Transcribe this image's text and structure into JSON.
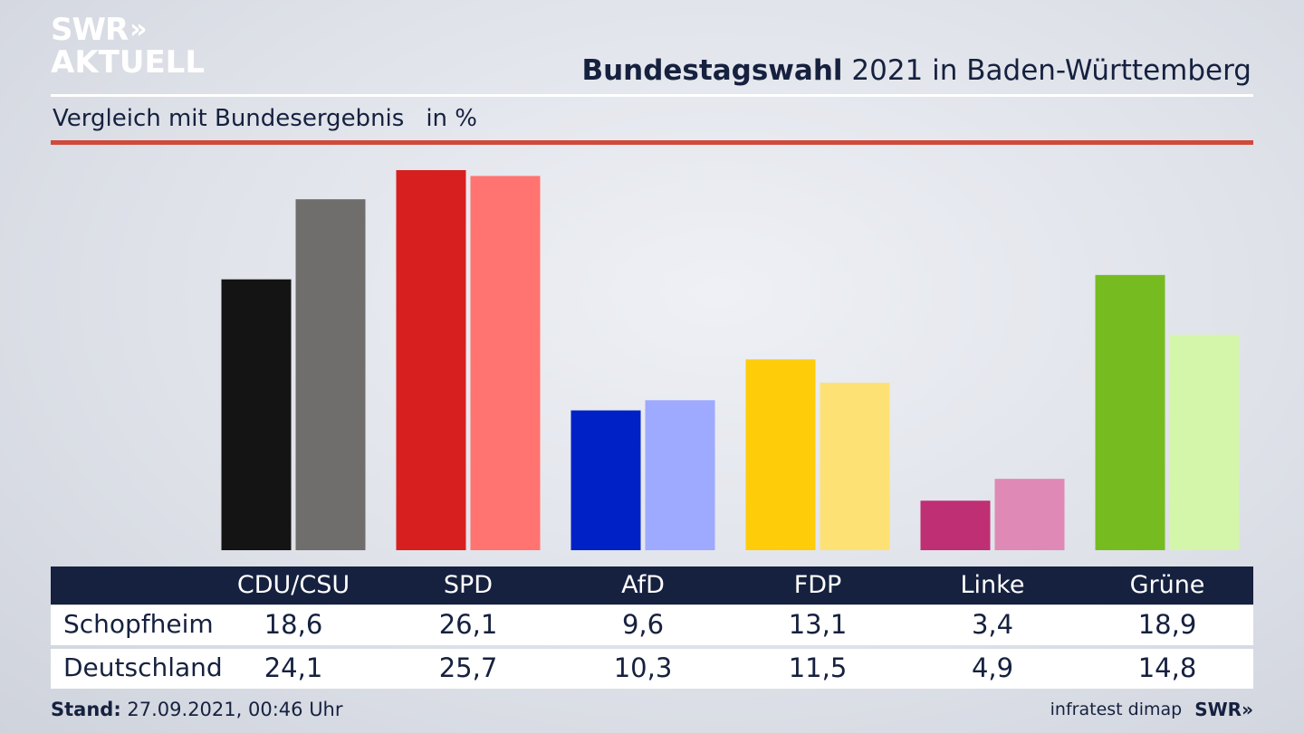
{
  "brand": {
    "line1": "SWR",
    "chevrons": "»",
    "line2": "AKTUELL"
  },
  "header": {
    "title_bold": "Bundestagswahl",
    "title_rest": "2021 in Baden-Württemberg"
  },
  "subtitle": {
    "text": "Vergleich mit Bundesergebnis",
    "unit": "in %"
  },
  "chart_data": {
    "type": "bar",
    "categories": [
      "CDU/CSU",
      "SPD",
      "AfD",
      "FDP",
      "Linke",
      "Grüne"
    ],
    "series": [
      {
        "name": "Schopfheim",
        "values": [
          18.6,
          26.1,
          9.6,
          13.1,
          3.4,
          18.9
        ],
        "colors": [
          "#141414",
          "#d81f1f",
          "#0021c6",
          "#ffcc0a",
          "#be2f73",
          "#76bc21"
        ]
      },
      {
        "name": "Deutschland",
        "values": [
          24.1,
          25.7,
          10.3,
          11.5,
          4.9,
          14.8
        ],
        "colors": [
          "#6f6e6c",
          "#ff7470",
          "#9eaaff",
          "#fee174",
          "#df89b6",
          "#d4f6aa"
        ]
      }
    ],
    "ylim": [
      0,
      26.1
    ],
    "legend": "table-below",
    "grid": false
  },
  "footer": {
    "stand_label": "Stand:",
    "stand_value": "27.09.2021, 00:46 Uhr",
    "source": "infratest dimap",
    "logo": "SWR",
    "logo_chevrons": "»"
  }
}
